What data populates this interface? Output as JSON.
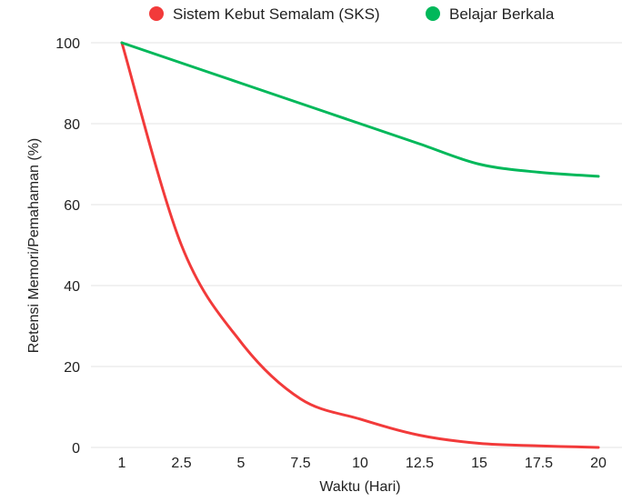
{
  "chart_data": {
    "type": "line",
    "title": "",
    "xlabel": "Waktu (Hari)",
    "ylabel": "Retensi Memori/Pemahaman (%)",
    "x_ticks": [
      "1",
      "2.5",
      "5",
      "7.5",
      "10",
      "12.5",
      "15",
      "17.5",
      "20"
    ],
    "y_ticks": [
      "0",
      "20",
      "40",
      "60",
      "80",
      "100"
    ],
    "ylim": [
      0,
      100
    ],
    "grid": true,
    "legend_position": "top",
    "series": [
      {
        "name": "Sistem Kebut Semalam (SKS)",
        "color": "#f23a3a",
        "values": [
          100,
          50,
          26,
          12,
          7,
          3,
          1,
          0.4,
          0
        ]
      },
      {
        "name": "Belajar Berkala",
        "color": "#00b85a",
        "values": [
          100,
          95,
          90,
          85,
          80,
          75,
          70,
          68,
          67
        ]
      }
    ]
  }
}
